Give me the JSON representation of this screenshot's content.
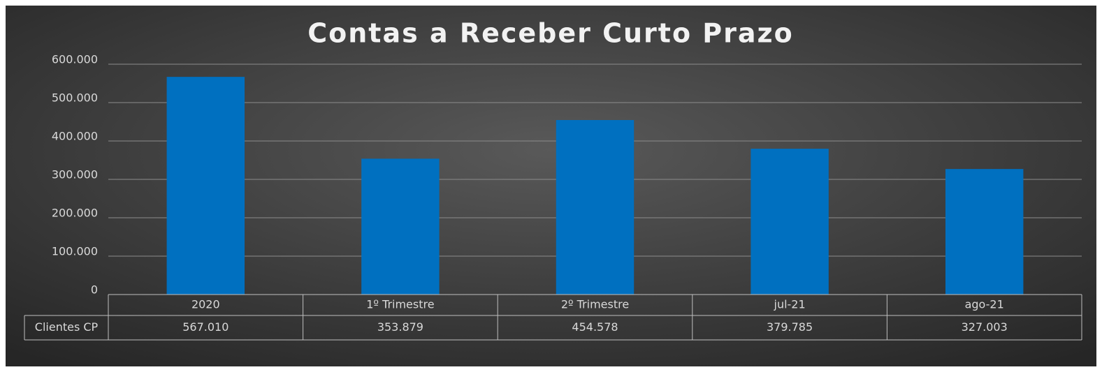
{
  "chart_data": {
    "type": "bar",
    "title": "Contas a Receber Curto Prazo",
    "categories": [
      "2020",
      "1º Trimestre",
      "2º Trimestre",
      "jul-21",
      "ago-21"
    ],
    "series": [
      {
        "name": "Clientes CP",
        "color": "#0070c0",
        "values": [
          567010,
          353879,
          454578,
          379785,
          327003
        ],
        "value_labels": [
          "567.010",
          "353.879",
          "454.578",
          "379.785",
          "327.003"
        ]
      }
    ],
    "ylim": [
      0,
      600000
    ],
    "yticks": [
      0,
      {
        "value": 100000,
        "label": "100.000"
      },
      {
        "value": 200000,
        "label": "200.000"
      },
      {
        "value": 300000,
        "label": "300.000"
      },
      {
        "value": 400000,
        "label": "400.000"
      },
      {
        "value": 500000,
        "label": "500.000"
      },
      {
        "value": 600000,
        "label": "600.000"
      }
    ],
    "grid": true
  }
}
